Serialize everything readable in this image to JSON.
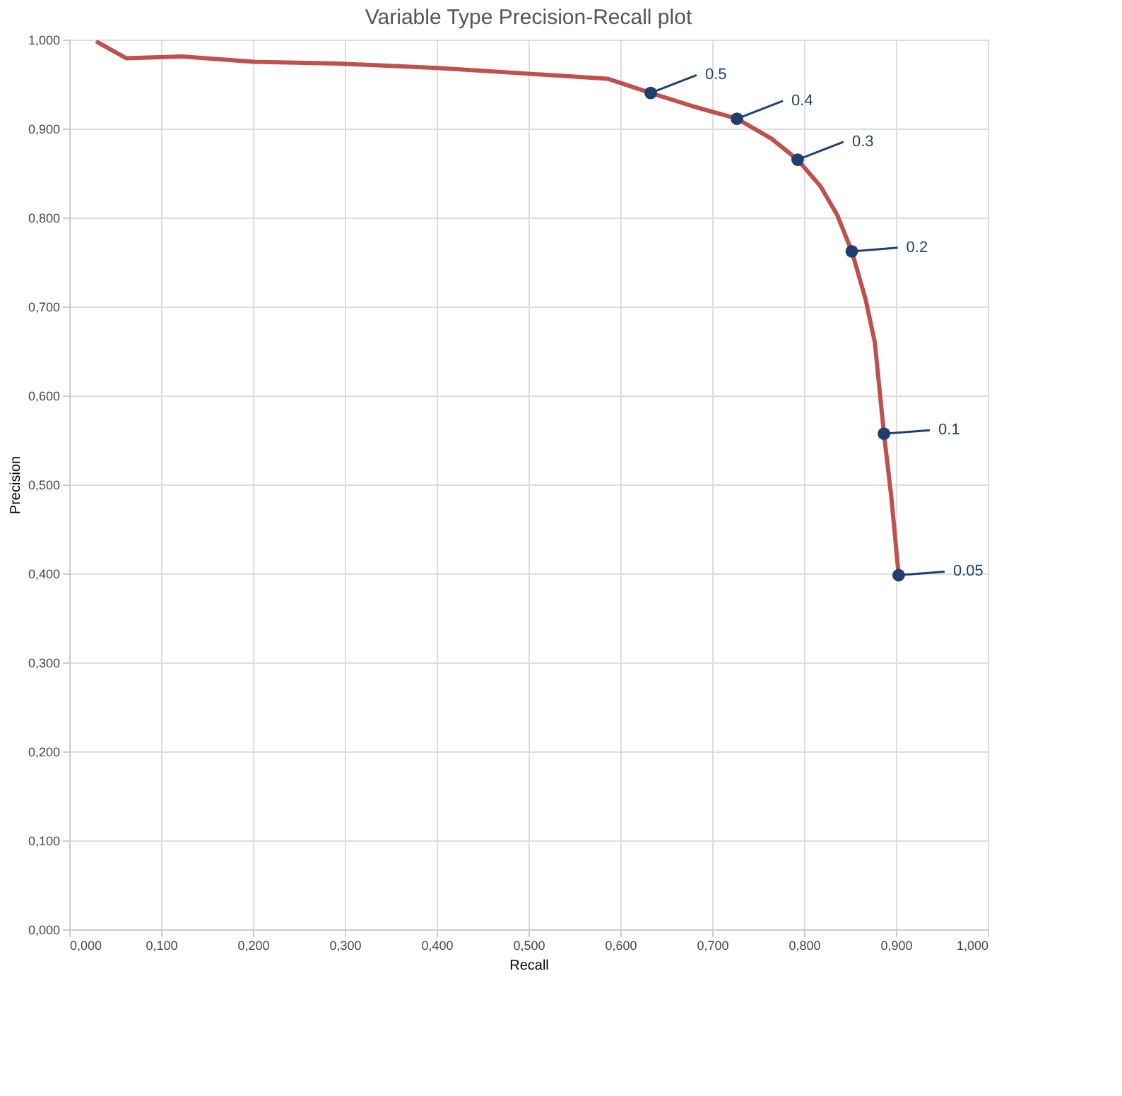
{
  "chart_data": {
    "type": "line",
    "title": "Variable Type Precision-Recall plot",
    "xlabel": "Recall",
    "ylabel": "Precision",
    "xlim": [
      0,
      1
    ],
    "ylim": [
      0,
      1
    ],
    "xticks": [
      {
        "value": 0,
        "label": "0,000"
      },
      {
        "value": 0.1,
        "label": "0,100"
      },
      {
        "value": 0.2,
        "label": "0,200"
      },
      {
        "value": 0.3,
        "label": "0,300"
      },
      {
        "value": 0.4,
        "label": "0,400"
      },
      {
        "value": 0.5,
        "label": "0,500"
      },
      {
        "value": 0.6,
        "label": "0,600"
      },
      {
        "value": 0.7,
        "label": "0,700"
      },
      {
        "value": 0.8,
        "label": "0,800"
      },
      {
        "value": 0.9,
        "label": "0,900"
      },
      {
        "value": 1,
        "label": "1,000"
      }
    ],
    "yticks": [
      {
        "value": 0,
        "label": "0,000"
      },
      {
        "value": 0.1,
        "label": "0,100"
      },
      {
        "value": 0.2,
        "label": "0,200"
      },
      {
        "value": 0.3,
        "label": "0,300"
      },
      {
        "value": 0.4,
        "label": "0,400"
      },
      {
        "value": 0.5,
        "label": "0,500"
      },
      {
        "value": 0.6,
        "label": "0,600"
      },
      {
        "value": 0.7,
        "label": "0,700"
      },
      {
        "value": 0.8,
        "label": "0,800"
      },
      {
        "value": 0.9,
        "label": "0,900"
      },
      {
        "value": 1,
        "label": "1,000"
      }
    ],
    "grid": true,
    "legend": false,
    "series": [
      {
        "type": "line",
        "marker": "none",
        "line_style": "solid",
        "color": "#c0504d",
        "x": [
          0.031,
          0.062,
          0.123,
          0.201,
          0.293,
          0.401,
          0.494,
          0.586,
          0.633,
          0.679,
          0.727,
          0.764,
          0.793,
          0.818,
          0.836,
          0.852,
          0.867,
          0.877,
          0.887,
          0.895,
          0.903
        ],
        "values": [
          0.997,
          0.979,
          0.981,
          0.975,
          0.973,
          0.968,
          0.962,
          0.956,
          0.94,
          0.925,
          0.911,
          0.889,
          0.865,
          0.835,
          0.803,
          0.762,
          0.708,
          0.66,
          0.557,
          0.486,
          0.398
        ]
      },
      {
        "type": "scatter",
        "marker": "circle",
        "color": "#1f3f6e",
        "x": [
          0.633,
          0.727,
          0.793,
          0.852,
          0.887,
          0.903
        ],
        "values": [
          0.94,
          0.911,
          0.865,
          0.762,
          0.557,
          0.398
        ]
      }
    ],
    "annotations": [
      {
        "text": "0.5",
        "x": 0.633,
        "y": 0.94
      },
      {
        "text": "0.4",
        "x": 0.727,
        "y": 0.911
      },
      {
        "text": "0.3",
        "x": 0.793,
        "y": 0.865
      },
      "0.2",
      "0.1",
      "0.05"
    ]
  }
}
